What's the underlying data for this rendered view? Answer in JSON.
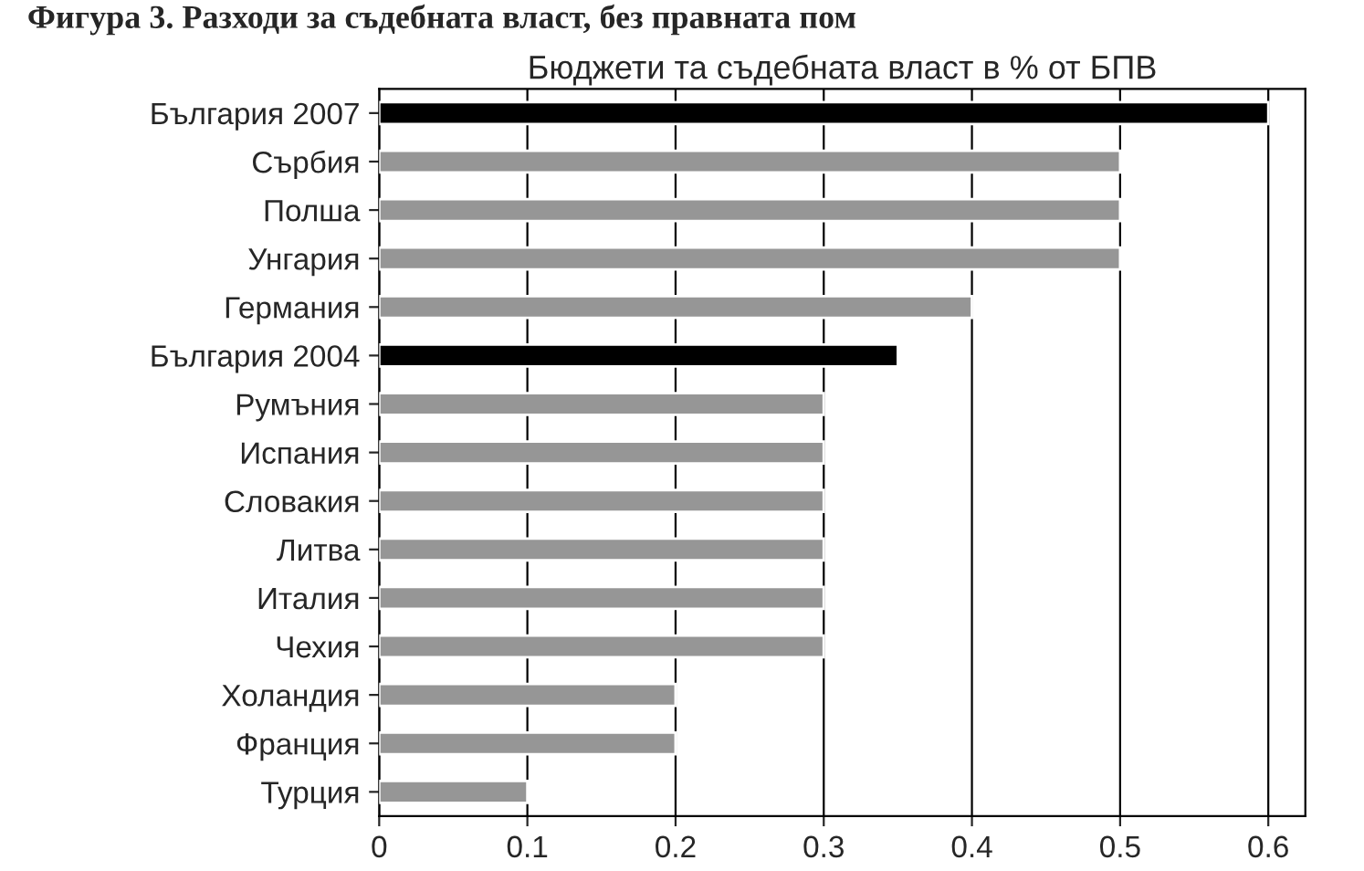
{
  "chart_data": {
    "type": "bar",
    "orientation": "horizontal",
    "title": "Бюджети та съдебната власт в % от БПВ",
    "annotations": [
      "Фигура 3. Разходи за съдебната власт, без правната пом"
    ],
    "categories": [
      "България 2007",
      "Сърбия",
      "Полша",
      "Унгария",
      "Германия",
      "България 2004",
      "Румъния",
      "Испания",
      "Словакия",
      "Литва",
      "Италия",
      "Чехия",
      "Холандия",
      "Франция",
      "Турция"
    ],
    "values": [
      0.6,
      0.5,
      0.5,
      0.5,
      0.4,
      0.35,
      0.3,
      0.3,
      0.3,
      0.3,
      0.3,
      0.3,
      0.2,
      0.2,
      0.1
    ],
    "colors": [
      "#000000",
      "#969696",
      "#969696",
      "#969696",
      "#969696",
      "#000000",
      "#969696",
      "#969696",
      "#969696",
      "#969696",
      "#969696",
      "#969696",
      "#969696",
      "#969696",
      "#969696"
    ],
    "xlim": [
      0,
      0.625
    ],
    "xticks": [
      0,
      0.1,
      0.2,
      0.3,
      0.4,
      0.5,
      0.6
    ],
    "grid": "x",
    "legend": false
  }
}
